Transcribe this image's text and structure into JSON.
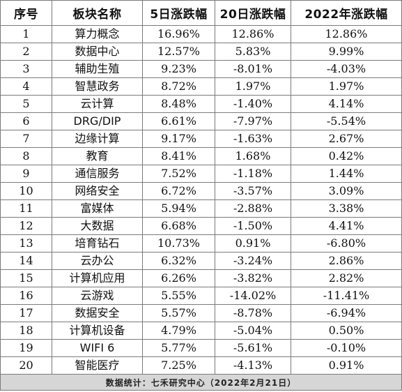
{
  "header": {
    "rank": "序号",
    "sector": "板块名称",
    "change_5d": "5日涨跌幅",
    "change_20d": "20日涨跌幅",
    "change_2022": "2022年涨跌幅"
  },
  "rows": [
    {
      "rank": "1",
      "sector": "算力概念",
      "change_5d": "16.96%",
      "change_20d": "12.86%",
      "change_2022": "12.86%"
    },
    {
      "rank": "2",
      "sector": "数据中心",
      "change_5d": "12.57%",
      "change_20d": "5.83%",
      "change_2022": "9.99%"
    },
    {
      "rank": "3",
      "sector": "辅助生殖",
      "change_5d": "9.23%",
      "change_20d": "-8.01%",
      "change_2022": "-4.03%"
    },
    {
      "rank": "4",
      "sector": "智慧政务",
      "change_5d": "8.72%",
      "change_20d": "1.97%",
      "change_2022": "1.97%"
    },
    {
      "rank": "5",
      "sector": "云计算",
      "change_5d": "8.48%",
      "change_20d": "-1.40%",
      "change_2022": "4.14%"
    },
    {
      "rank": "6",
      "sector": "DRG/DIP",
      "change_5d": "6.61%",
      "change_20d": "-7.97%",
      "change_2022": "-5.54%"
    },
    {
      "rank": "7",
      "sector": "边缘计算",
      "change_5d": "9.17%",
      "change_20d": "-1.63%",
      "change_2022": "2.67%"
    },
    {
      "rank": "8",
      "sector": "教育",
      "change_5d": "8.41%",
      "change_20d": "1.68%",
      "change_2022": "0.42%"
    },
    {
      "rank": "9",
      "sector": "通信服务",
      "change_5d": "7.52%",
      "change_20d": "-1.18%",
      "change_2022": "1.44%"
    },
    {
      "rank": "10",
      "sector": "网络安全",
      "change_5d": "6.72%",
      "change_20d": "-3.57%",
      "change_2022": "3.09%"
    },
    {
      "rank": "11",
      "sector": "富媒体",
      "change_5d": "5.94%",
      "change_20d": "-2.88%",
      "change_2022": "3.38%"
    },
    {
      "rank": "12",
      "sector": "大数据",
      "change_5d": "6.68%",
      "change_20d": "-1.50%",
      "change_2022": "4.41%"
    },
    {
      "rank": "13",
      "sector": "培育钻石",
      "change_5d": "10.73%",
      "change_20d": "0.91%",
      "change_2022": "-6.80%"
    },
    {
      "rank": "14",
      "sector": "云办公",
      "change_5d": "6.32%",
      "change_20d": "-3.24%",
      "change_2022": "2.86%"
    },
    {
      "rank": "15",
      "sector": "计算机应用",
      "change_5d": "6.26%",
      "change_20d": "-3.82%",
      "change_2022": "2.82%"
    },
    {
      "rank": "16",
      "sector": "云游戏",
      "change_5d": "5.55%",
      "change_20d": "-14.02%",
      "change_2022": "-11.41%"
    },
    {
      "rank": "17",
      "sector": "数据安全",
      "change_5d": "5.57%",
      "change_20d": "-8.78%",
      "change_2022": "-6.94%"
    },
    {
      "rank": "18",
      "sector": "计算机设备",
      "change_5d": "4.79%",
      "change_20d": "-5.04%",
      "change_2022": "0.50%"
    },
    {
      "rank": "19",
      "sector": "WIFI 6",
      "change_5d": "5.77%",
      "change_20d": "-5.61%",
      "change_2022": "-0.10%"
    },
    {
      "rank": "20",
      "sector": "智能医疗",
      "change_5d": "7.25%",
      "change_20d": "-4.13%",
      "change_2022": "0.91%"
    }
  ],
  "footer": {
    "source": "数据统计：七禾研究中心（2022年2月21日）"
  }
}
